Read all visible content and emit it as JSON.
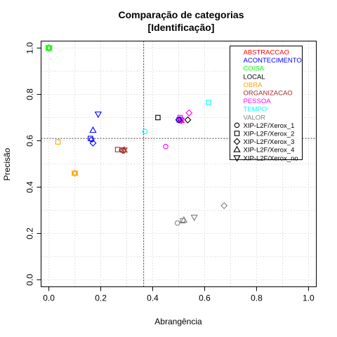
{
  "chart_data": {
    "type": "scatter",
    "title": "Comparação de categorias",
    "subtitle": "[Identificação]",
    "xlabel": "Abrangência",
    "ylabel": "Precisão",
    "xlim": [
      -0.03,
      1.03
    ],
    "ylim": [
      -0.03,
      1.03
    ],
    "xticks": [
      0.0,
      0.2,
      0.4,
      0.6,
      0.8,
      1.0
    ],
    "xtick_labels": [
      "0.0",
      "0.2",
      "0.4",
      "0.6",
      "0.8",
      "1.0"
    ],
    "yticks": [
      0.0,
      0.2,
      0.4,
      0.6,
      0.8,
      1.0
    ],
    "ytick_labels": [
      "0.0",
      "0.2",
      "0.4",
      "0.6",
      "0.8",
      "1.0"
    ],
    "grid": true,
    "reference_lines": {
      "x": 0.365,
      "y": 0.61
    },
    "legend_position": "top-right",
    "categories": [
      {
        "name": "ABSTRACCAO",
        "color": "#ff0000"
      },
      {
        "name": "ACONTECIMENTO",
        "color": "#0000ff"
      },
      {
        "name": "COISA",
        "color": "#00ff00"
      },
      {
        "name": "LOCAL",
        "color": "#000000"
      },
      {
        "name": "OBRA",
        "color": "#ffa500"
      },
      {
        "name": "ORGANIZACAO",
        "color": "#a52a2a"
      },
      {
        "name": "PESSOA",
        "color": "#ff00ff"
      },
      {
        "name": "TEMPO",
        "color": "#00ffff"
      },
      {
        "name": "VALOR",
        "color": "#808080"
      }
    ],
    "systems": [
      {
        "name": "XIP-L2F/Xerox_1",
        "symbol": "circle"
      },
      {
        "name": "XIP-L2F/Xerox_2",
        "symbol": "square"
      },
      {
        "name": "XIP-L2F/Xerox_3",
        "symbol": "diamond"
      },
      {
        "name": "XIP-L2F/Xerox_4",
        "symbol": "triangle-up"
      },
      {
        "name": "XIP-L2F/Xerox_no",
        "symbol": "triangle-down"
      }
    ],
    "points": [
      {
        "category": "ABSTRACCAO",
        "system": "XIP-L2F/Xerox_1",
        "x": 0.0,
        "y": 1.0
      },
      {
        "category": "ABSTRACCAO",
        "system": "XIP-L2F/Xerox_2",
        "x": 0.0,
        "y": 1.0
      },
      {
        "category": "ABSTRACCAO",
        "system": "XIP-L2F/Xerox_3",
        "x": 0.0,
        "y": 1.0
      },
      {
        "category": "ABSTRACCAO",
        "system": "XIP-L2F/Xerox_4",
        "x": 0.0,
        "y": 1.0
      },
      {
        "category": "ABSTRACCAO",
        "system": "XIP-L2F/Xerox_no",
        "x": 0.0,
        "y": 1.0
      },
      {
        "category": "COISA",
        "system": "XIP-L2F/Xerox_1",
        "x": 0.0,
        "y": 1.0
      },
      {
        "category": "COISA",
        "system": "XIP-L2F/Xerox_2",
        "x": 0.0,
        "y": 1.0
      },
      {
        "category": "COISA",
        "system": "XIP-L2F/Xerox_3",
        "x": 0.0,
        "y": 1.0
      },
      {
        "category": "COISA",
        "system": "XIP-L2F/Xerox_4",
        "x": 0.0,
        "y": 1.0
      },
      {
        "category": "COISA",
        "system": "XIP-L2F/Xerox_no",
        "x": 0.0,
        "y": 1.0
      },
      {
        "category": "ACONTECIMENTO",
        "system": "XIP-L2F/Xerox_1",
        "x": 0.165,
        "y": 0.605
      },
      {
        "category": "ACONTECIMENTO",
        "system": "XIP-L2F/Xerox_2",
        "x": 0.16,
        "y": 0.61
      },
      {
        "category": "ACONTECIMENTO",
        "system": "XIP-L2F/Xerox_3",
        "x": 0.17,
        "y": 0.59
      },
      {
        "category": "ACONTECIMENTO",
        "system": "XIP-L2F/Xerox_4",
        "x": 0.17,
        "y": 0.645
      },
      {
        "category": "ACONTECIMENTO",
        "system": "XIP-L2F/Xerox_no",
        "x": 0.19,
        "y": 0.715
      },
      {
        "category": "OBRA",
        "system": "XIP-L2F/Xerox_1",
        "x": 0.1,
        "y": 0.46
      },
      {
        "category": "OBRA",
        "system": "XIP-L2F/Xerox_2",
        "x": 0.035,
        "y": 0.595
      },
      {
        "category": "OBRA",
        "system": "XIP-L2F/Xerox_3",
        "x": 0.1,
        "y": 0.46
      },
      {
        "category": "OBRA",
        "system": "XIP-L2F/Xerox_4",
        "x": 0.1,
        "y": 0.46
      },
      {
        "category": "OBRA",
        "system": "XIP-L2F/Xerox_no",
        "x": 0.1,
        "y": 0.46
      },
      {
        "category": "ORGANIZACAO",
        "system": "XIP-L2F/Xerox_1",
        "x": 0.28,
        "y": 0.56
      },
      {
        "category": "ORGANIZACAO",
        "system": "XIP-L2F/Xerox_2",
        "x": 0.265,
        "y": 0.562
      },
      {
        "category": "ORGANIZACAO",
        "system": "XIP-L2F/Xerox_3",
        "x": 0.285,
        "y": 0.558
      },
      {
        "category": "ORGANIZACAO",
        "system": "XIP-L2F/Xerox_4",
        "x": 0.29,
        "y": 0.56
      },
      {
        "category": "ORGANIZACAO",
        "system": "XIP-L2F/Xerox_no",
        "x": 0.29,
        "y": 0.56
      },
      {
        "category": "TEMPO",
        "system": "XIP-L2F/Xerox_1",
        "x": 0.37,
        "y": 0.64
      },
      {
        "category": "TEMPO",
        "system": "XIP-L2F/Xerox_2",
        "x": 0.615,
        "y": 0.765
      },
      {
        "category": "LOCAL",
        "system": "XIP-L2F/Xerox_1",
        "x": 0.5,
        "y": 0.69
      },
      {
        "category": "LOCAL",
        "system": "XIP-L2F/Xerox_2",
        "x": 0.42,
        "y": 0.7
      },
      {
        "category": "LOCAL",
        "system": "XIP-L2F/Xerox_3",
        "x": 0.535,
        "y": 0.69
      },
      {
        "category": "LOCAL",
        "system": "XIP-L2F/Xerox_4",
        "x": 0.505,
        "y": 0.69
      },
      {
        "category": "LOCAL",
        "system": "XIP-L2F/Xerox_no",
        "x": 0.505,
        "y": 0.69
      },
      {
        "category": "PESSOA",
        "system": "XIP-L2F/Xerox_1",
        "x": 0.45,
        "y": 0.575
      },
      {
        "category": "PESSOA",
        "system": "XIP-L2F/Xerox_2",
        "x": 0.505,
        "y": 0.7
      },
      {
        "category": "PESSOA",
        "system": "XIP-L2F/Xerox_3",
        "x": 0.54,
        "y": 0.72
      },
      {
        "category": "PESSOA",
        "system": "XIP-L2F/Xerox_4",
        "x": 0.51,
        "y": 0.688
      },
      {
        "category": "PESSOA",
        "system": "XIP-L2F/Xerox_no",
        "x": 0.51,
        "y": 0.688
      },
      {
        "category": "ACONTECIMENTO",
        "system": "XIP-L2F/Xerox_3",
        "x": 0.5,
        "y": 0.69
      },
      {
        "category": "VALOR",
        "system": "XIP-L2F/Xerox_1",
        "x": 0.495,
        "y": 0.245
      },
      {
        "category": "VALOR",
        "system": "XIP-L2F/Xerox_2",
        "x": 0.515,
        "y": 0.255
      },
      {
        "category": "VALOR",
        "system": "XIP-L2F/Xerox_3",
        "x": 0.675,
        "y": 0.32
      },
      {
        "category": "VALOR",
        "system": "XIP-L2F/Xerox_4",
        "x": 0.52,
        "y": 0.258
      },
      {
        "category": "VALOR",
        "system": "XIP-L2F/Xerox_no",
        "x": 0.56,
        "y": 0.27
      }
    ]
  }
}
